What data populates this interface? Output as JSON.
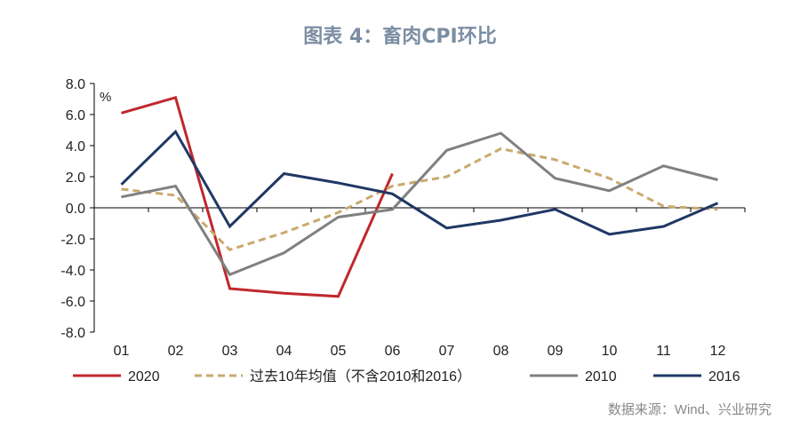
{
  "chart_data": {
    "type": "line",
    "title": "图表 4：畜肉CPI环比",
    "ylabel": "%",
    "source": "数据来源：Wind、兴业研究",
    "categories": [
      "01",
      "02",
      "03",
      "04",
      "05",
      "06",
      "07",
      "08",
      "09",
      "10",
      "11",
      "12"
    ],
    "y_ticks": [
      "8.0",
      "6.0",
      "4.0",
      "2.0",
      "0.0",
      "-2.0",
      "-4.0",
      "-6.0",
      "-8.0"
    ],
    "ylim": [
      -8,
      8
    ],
    "grid": false,
    "legend_position": "bottom",
    "series": [
      {
        "name": "2020",
        "color": "#c0282d",
        "dash": "solid",
        "values": [
          6.1,
          7.1,
          -5.2,
          -5.5,
          -5.7,
          2.2,
          null,
          null,
          null,
          null,
          null,
          null
        ]
      },
      {
        "name": "过去10年均值（不含2010和2016）",
        "color": "#c9a96e",
        "dash": "dashed",
        "values": [
          1.2,
          0.8,
          -2.7,
          -1.6,
          -0.3,
          1.4,
          2.0,
          3.8,
          3.1,
          1.9,
          0.1,
          -0.1
        ]
      },
      {
        "name": "2010",
        "color": "#808080",
        "dash": "solid",
        "values": [
          0.7,
          1.4,
          -4.3,
          -2.9,
          -0.6,
          -0.1,
          3.7,
          4.8,
          1.9,
          1.1,
          2.7,
          1.8
        ]
      },
      {
        "name": "2016",
        "color": "#1f3864",
        "dash": "solid",
        "values": [
          1.5,
          4.9,
          -1.2,
          2.2,
          1.6,
          0.9,
          -1.3,
          -0.8,
          -0.1,
          -1.7,
          -1.2,
          0.3
        ]
      }
    ]
  }
}
